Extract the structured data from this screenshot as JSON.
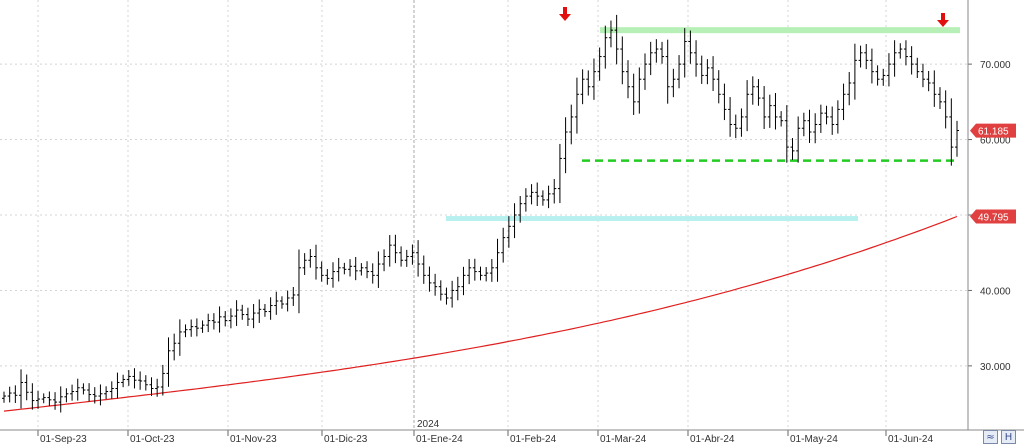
{
  "chart_data": {
    "type": "ohlc",
    "ylim": [
      21.5,
      78.5
    ],
    "y_ticks": [
      30,
      40,
      50,
      60,
      70
    ],
    "y_tick_labels": [
      "30.000",
      "40.000",
      "50.000",
      "60.000",
      "70.000"
    ],
    "x_tick_labels": [
      "01-Sep-23",
      "01-Oct-23",
      "01-Nov-23",
      "01-Dic-23",
      "01-Ene-24",
      "01-Feb-24",
      "01-Mar-24",
      "01-Abr-24",
      "01-May-24",
      "01-Jun-24"
    ],
    "year_marker": "2024",
    "close_series": [
      26.0,
      26.4,
      26.1,
      27.8,
      26.5,
      25.4,
      25.6,
      25.8,
      25.5,
      25.2,
      25.9,
      26.3,
      26.6,
      27.1,
      26.8,
      26.2,
      26.0,
      26.3,
      26.6,
      27.0,
      27.8,
      28.2,
      28.6,
      28.1,
      28.0,
      27.5,
      27.0,
      27.2,
      29.0,
      32.0,
      33.0,
      34.5,
      34.8,
      35.2,
      35.0,
      35.4,
      36.0,
      35.8,
      36.5,
      36.0,
      36.6,
      37.4,
      36.8,
      36.2,
      37.0,
      37.5,
      37.2,
      38.0,
      38.6,
      38.2,
      39.0,
      39.4,
      43.0,
      44.0,
      44.5,
      43.0,
      42.0,
      41.6,
      42.5,
      43.0,
      42.8,
      43.2,
      42.6,
      43.0,
      42.5,
      42.0,
      43.5,
      44.5,
      46.0,
      45.0,
      44.0,
      44.5,
      45.0,
      43.5,
      42.0,
      41.0,
      40.5,
      39.5,
      39.0,
      40.0,
      40.5,
      42.0,
      43.0,
      42.5,
      42.0,
      42.3,
      43.0,
      45.0,
      47.0,
      48.5,
      50.0,
      51.5,
      52.5,
      53.0,
      52.5,
      52.0,
      52.8,
      53.5,
      57.5,
      61.0,
      63.0,
      66.0,
      68.0,
      67.0,
      69.0,
      71.0,
      73.5,
      74.5,
      72.0,
      69.0,
      67.0,
      65.0,
      68.0,
      70.0,
      71.5,
      72.0,
      71.0,
      67.0,
      68.0,
      70.0,
      73.0,
      71.5,
      70.0,
      68.5,
      69.5,
      68.0,
      66.0,
      64.0,
      62.0,
      61.5,
      63.0,
      66.0,
      67.0,
      65.5,
      63.0,
      64.5,
      63.0,
      62.5,
      59.0,
      58.5,
      61.5,
      62.5,
      61.0,
      62.0,
      63.5,
      63.0,
      62.0,
      64.0,
      66.0,
      67.5,
      70.5,
      71.5,
      70.5,
      69.0,
      68.0,
      68.5,
      70.0,
      71.5,
      72.0,
      71.0,
      70.0,
      69.0,
      68.0,
      67.5,
      66.0,
      65.0,
      63.0,
      59.0,
      61.2
    ],
    "moving_average": {
      "color": "#e02020",
      "start": 24.0,
      "end": 49.795
    },
    "last_price": "61.185",
    "ma_price": "49.795",
    "annotations": {
      "resistance_zone": {
        "y": 74.5,
        "color": "#b6f0b6"
      },
      "support_line": {
        "y": 57.2,
        "color": "#22cc22",
        "style": "dashed"
      },
      "breakout_zone": {
        "y": 49.6,
        "color": "#b8f0f0"
      },
      "down_arrows_color": "#e01010"
    },
    "colors": {
      "bars": "#000000",
      "grid": "#d4d4d4",
      "last_price_tag": "#e04040",
      "ma_price_tag": "#e04040"
    }
  }
}
